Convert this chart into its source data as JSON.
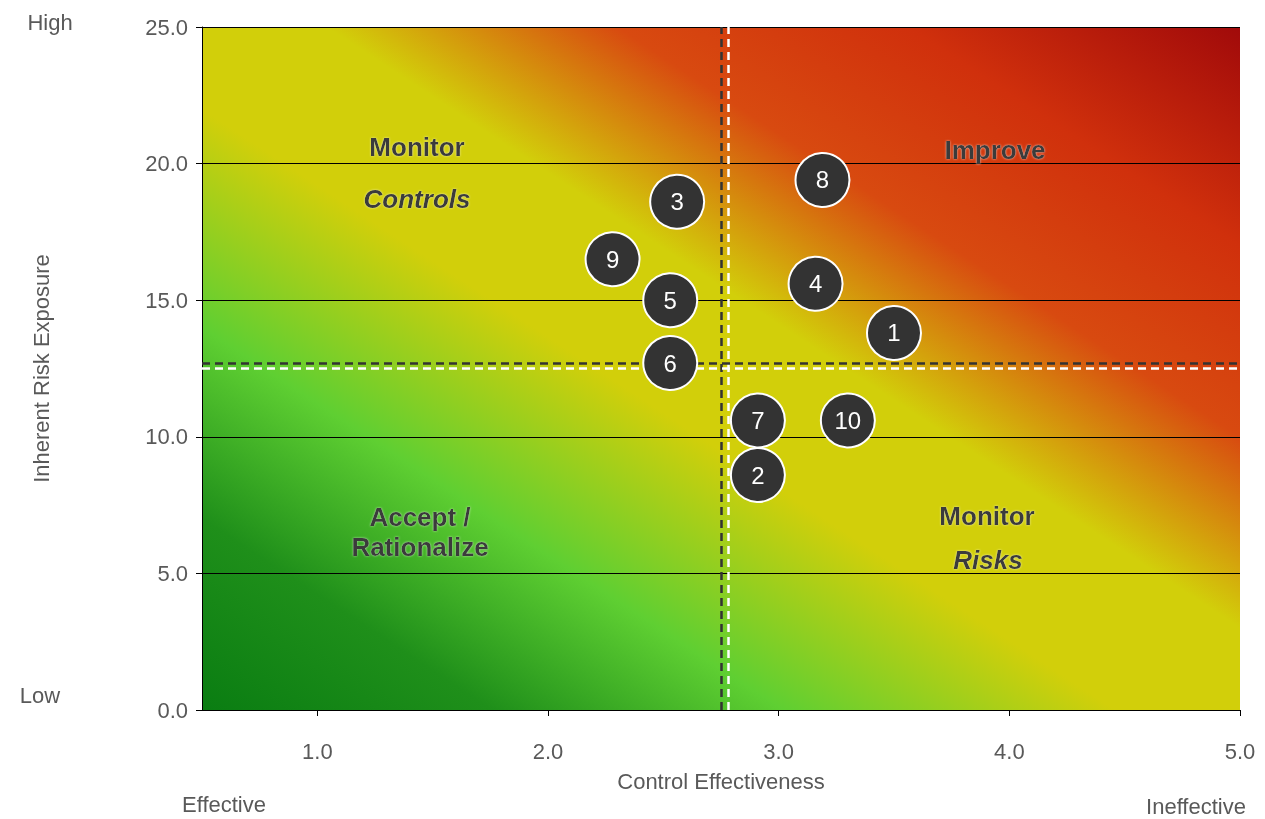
{
  "chart_data": {
    "type": "scatter",
    "xlabel": "Control Effectiveness",
    "ylabel": "Inherent Risk Exposure",
    "x": [
      3.5,
      2.91,
      2.56,
      3.16,
      2.53,
      2.53,
      2.91,
      3.19,
      2.28,
      3.3
    ],
    "values": [
      13.8,
      8.6,
      18.6,
      15.6,
      15.0,
      12.7,
      10.6,
      19.4,
      16.5,
      10.6
    ],
    "color": "#333333",
    "marker": "circle",
    "xlim": [
      0.5,
      5
    ],
    "xticks": [
      {
        "value": 1,
        "label": "1.0"
      },
      {
        "value": 2,
        "label": "2.0"
      },
      {
        "value": 3,
        "label": "3.0"
      },
      {
        "value": 4,
        "label": "4.0"
      },
      {
        "value": 5,
        "label": "5.0"
      }
    ],
    "ylim": [
      0,
      25
    ],
    "yticks": [
      {
        "value": 0,
        "label": "0.0"
      },
      {
        "value": 5,
        "label": "5.0"
      },
      {
        "value": 10,
        "label": "10.0"
      },
      {
        "value": 15,
        "label": "15.0"
      },
      {
        "value": 20,
        "label": "20.0"
      },
      {
        "value": 25,
        "label": "25.0"
      }
    ],
    "grid": "y",
    "ref_lines": [
      {
        "axis": "x",
        "value": 2.75,
        "color": "#333333",
        "line_style": "dashed"
      },
      {
        "axis": "x",
        "value": 2.78,
        "color": "#ffffff",
        "line_style": "dashed"
      },
      {
        "axis": "y",
        "value": 12.7,
        "color": "#333333",
        "line_style": "dashed"
      },
      {
        "axis": "y",
        "value": 12.5,
        "color": "#ffffff",
        "line_style": "dashed"
      }
    ],
    "annotations": [
      "Monitor",
      "Controls",
      "Improve",
      "Accept /\nRationalize",
      "Monitor",
      "Risks",
      "High",
      "Low",
      "Effective",
      "Ineffective",
      {
        "text": "1",
        "x": 3.5,
        "y": 13.8
      },
      {
        "text": "2",
        "x": 2.91,
        "y": 8.6
      },
      {
        "text": "3",
        "x": 2.56,
        "y": 18.6
      },
      {
        "text": "4",
        "x": 3.16,
        "y": 15.6
      },
      {
        "text": "5",
        "x": 2.53,
        "y": 15.0
      },
      {
        "text": "6",
        "x": 2.53,
        "y": 12.7
      },
      {
        "text": "7",
        "x": 2.91,
        "y": 10.6
      },
      {
        "text": "8",
        "x": 3.19,
        "y": 19.4
      },
      {
        "text": "9",
        "x": 2.28,
        "y": 16.5
      },
      {
        "text": "10",
        "x": 3.3,
        "y": 10.6
      }
    ]
  }
}
